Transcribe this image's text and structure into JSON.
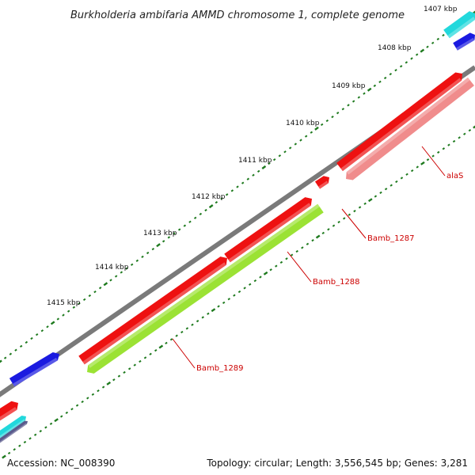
{
  "title": "Burkholderia ambifaria AMMD chromosome 1, complete genome",
  "accession": "Accession: NC_008390",
  "summary": "Topology: circular; Length: 3,556,545 bp; Genes: 3,281",
  "colors": {
    "backbone": "#7a7a7a",
    "tick": "#1e7a1e",
    "cds_forward": "#ee1111",
    "cds_reverse_alaS": "#f08c8c",
    "cds_reverse_Bamb_1289": "#9be234",
    "other_blue": "#1a1ae0",
    "other_cyan": "#22d8dc",
    "label": "#cc0000"
  },
  "kbp_labels": [
    "1407 kbp",
    "1408 kbp",
    "1409 kbp",
    "1410 kbp",
    "1411 kbp",
    "1412 kbp",
    "1413 kbp",
    "1414 kbp",
    "1415 kbp"
  ],
  "genes": [
    {
      "name": "alaS"
    },
    {
      "name": "Bamb_1287"
    },
    {
      "name": "Bamb_1288"
    },
    {
      "name": "Bamb_1289"
    }
  ]
}
